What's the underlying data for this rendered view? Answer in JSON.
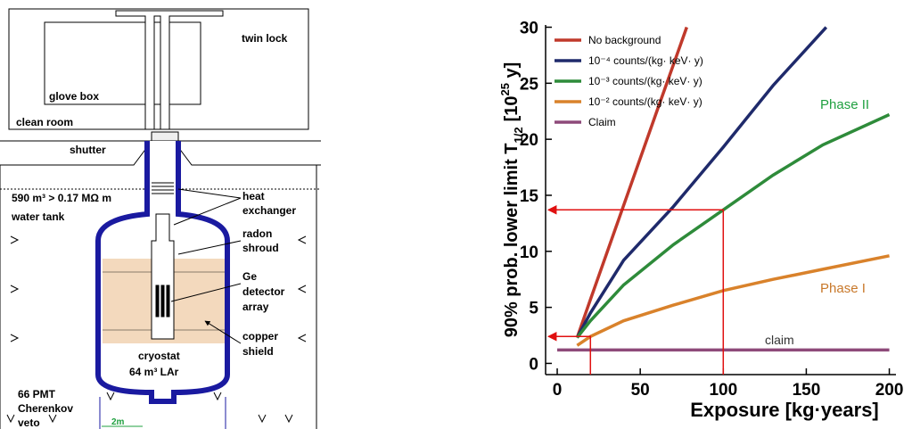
{
  "diagram": {
    "labels": {
      "twin_lock": "twin lock",
      "glove_box": "glove box",
      "clean_room": "clean room",
      "shutter": "shutter",
      "water_volume": "590 m³  > 0.17 MΩ m",
      "water_tank": "water tank",
      "heat_exchanger": [
        "heat",
        "exchanger"
      ],
      "radon_shroud": [
        "radon",
        "shroud"
      ],
      "ge_array": [
        "Ge",
        "detector",
        "array"
      ],
      "copper_shield": [
        "copper",
        "shield"
      ],
      "cryostat": "cryostat",
      "lar": "64 m³   LAr",
      "veto": [
        "66 PMT",
        "Cherenkov",
        "veto"
      ],
      "scale": "2m"
    }
  },
  "chart_data": {
    "type": "line",
    "x_label": "Exposure [kg·years]",
    "y_label": {
      "text": "90% prob. lower limit T",
      "subscript": "1/2",
      "unit": "[10",
      "exponent": "25",
      "unit_end": " y]"
    },
    "xlim": [
      -7,
      204
    ],
    "ylim": [
      -1,
      30.2
    ],
    "xticks": [
      0,
      50,
      100,
      150,
      200
    ],
    "yticks": [
      0,
      5,
      10,
      15,
      20,
      25,
      30
    ],
    "series": [
      {
        "name": "No background",
        "color": "#c0392b",
        "x": [
          12,
          20,
          40,
          60,
          78
        ],
        "values": [
          2.3,
          5.7,
          14.1,
          22.5,
          30
        ]
      },
      {
        "name": "10⁻⁴ counts/(kg· keV· y)",
        "color": "#1f2a6b",
        "x": [
          12,
          20,
          40,
          70,
          100,
          130,
          162
        ],
        "values": [
          2.3,
          4.5,
          9.2,
          14.0,
          19.3,
          24.8,
          30
        ]
      },
      {
        "name": "10⁻³ counts/(kg· keV· y)",
        "color": "#2e8b3a",
        "x": [
          12,
          20,
          40,
          70,
          100,
          130,
          160,
          200
        ],
        "values": [
          2.3,
          3.8,
          7.0,
          10.6,
          13.7,
          16.8,
          19.5,
          22.2
        ]
      },
      {
        "name": "10⁻² counts/(kg· keV· y)",
        "color": "#d9822b",
        "x": [
          12,
          20,
          40,
          70,
          100,
          130,
          160,
          200
        ],
        "values": [
          1.6,
          2.4,
          3.8,
          5.2,
          6.5,
          7.5,
          8.4,
          9.6
        ]
      },
      {
        "name": "Claim",
        "color": "#8e4a7a",
        "x": [
          0,
          200
        ],
        "values": [
          1.2,
          1.2
        ]
      }
    ],
    "reference_lines": [
      {
        "x": 100,
        "y": 13.7
      },
      {
        "x": 20,
        "y": 2.4
      }
    ],
    "reference_color": "#e01010",
    "annotations": [
      {
        "text": "Phase II",
        "color": "#20a040"
      },
      {
        "text": "Phase I",
        "color": "#c8782a"
      },
      {
        "text": "claim",
        "color": "#333333"
      }
    ]
  }
}
